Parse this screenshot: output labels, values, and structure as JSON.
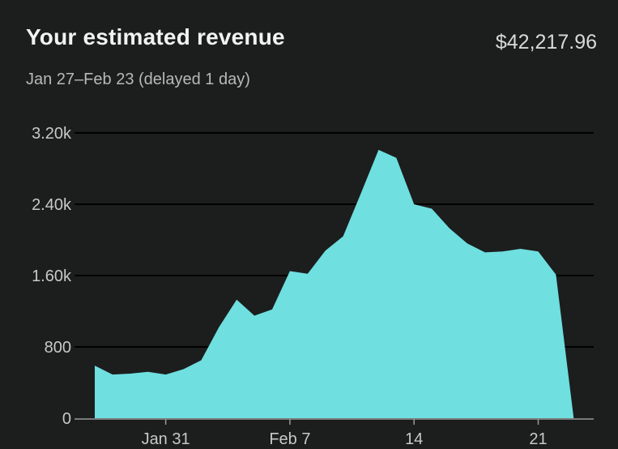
{
  "header": {
    "title": "Your estimated revenue",
    "total": "$42,217.96",
    "date_range": "Jan 27–Feb 23 (delayed 1 day)"
  },
  "colors": {
    "background": "#1c1d1d",
    "area_fill": "#6fdfe0",
    "gridline": "#3a3a3a",
    "axis": "#9a9a9a"
  },
  "chart_data": {
    "type": "area",
    "title": "",
    "xlabel": "",
    "ylabel": "",
    "ylim": [
      0,
      3200
    ],
    "yticks": [
      {
        "value": 0,
        "label": "0"
      },
      {
        "value": 800,
        "label": "800"
      },
      {
        "value": 1600,
        "label": "1.60k"
      },
      {
        "value": 2400,
        "label": "2.40k"
      },
      {
        "value": 3200,
        "label": "3.20k"
      }
    ],
    "xticks": [
      {
        "x": "Jan 31",
        "label": "Jan 31"
      },
      {
        "x": "Feb 7",
        "label": "Feb 7"
      },
      {
        "x": "Feb 14",
        "label": "14"
      },
      {
        "x": "Feb 21",
        "label": "21"
      }
    ],
    "grid": true,
    "x": [
      "Jan 27",
      "Jan 28",
      "Jan 29",
      "Jan 30",
      "Jan 31",
      "Feb 1",
      "Feb 2",
      "Feb 3",
      "Feb 4",
      "Feb 5",
      "Feb 6",
      "Feb 7",
      "Feb 8",
      "Feb 9",
      "Feb 10",
      "Feb 11",
      "Feb 12",
      "Feb 13",
      "Feb 14",
      "Feb 15",
      "Feb 16",
      "Feb 17",
      "Feb 18",
      "Feb 19",
      "Feb 20",
      "Feb 21",
      "Feb 22",
      "Feb 23"
    ],
    "series": [
      {
        "values": [
          590,
          490,
          500,
          520,
          490,
          550,
          650,
          1020,
          1330,
          1150,
          1220,
          1650,
          1620,
          1880,
          2040,
          2520,
          3010,
          2920,
          2400,
          2350,
          2130,
          1960,
          1860,
          1870,
          1900,
          1870,
          1610,
          0
        ]
      }
    ]
  }
}
